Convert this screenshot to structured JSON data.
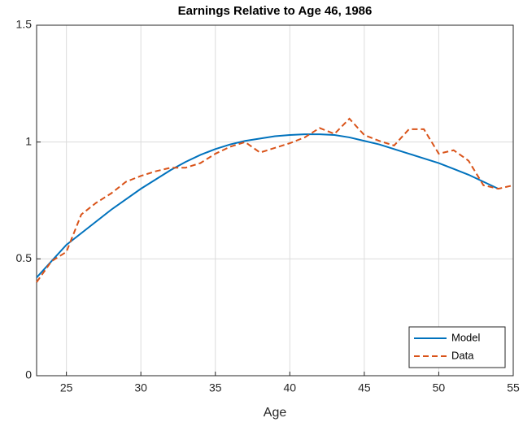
{
  "chart_data": {
    "type": "line",
    "title": "Earnings Relative to Age 46, 1986",
    "x_label": "Age",
    "x": [
      23,
      24,
      25,
      26,
      27,
      28,
      29,
      30,
      31,
      32,
      33,
      34,
      35,
      36,
      37,
      38,
      39,
      40,
      41,
      42,
      43,
      44,
      45,
      46,
      47,
      48,
      49,
      50,
      51,
      52,
      53,
      54,
      55
    ],
    "series": [
      {
        "name": "Model",
        "color": "#0072BD",
        "style": "solid",
        "values": [
          0.42,
          0.49,
          0.56,
          0.61,
          0.66,
          0.71,
          0.755,
          0.8,
          0.84,
          0.88,
          0.915,
          0.945,
          0.97,
          0.99,
          1.005,
          1.015,
          1.025,
          1.03,
          1.033,
          1.033,
          1.03,
          1.02,
          1.005,
          0.99,
          0.97,
          0.95,
          0.93,
          0.91,
          0.885,
          0.86,
          0.83,
          0.8,
          null
        ]
      },
      {
        "name": "Data",
        "color": "#D95319",
        "style": "dashed",
        "values": [
          0.4,
          0.49,
          0.53,
          0.69,
          0.74,
          0.78,
          0.83,
          0.855,
          0.875,
          0.89,
          0.89,
          0.91,
          0.95,
          0.98,
          1.0,
          0.955,
          0.975,
          0.995,
          1.02,
          1.06,
          1.035,
          1.1,
          1.03,
          1.005,
          0.985,
          1.055,
          1.055,
          0.95,
          0.965,
          0.92,
          0.815,
          0.8,
          0.815
        ]
      }
    ],
    "xlim": [
      23,
      55
    ],
    "xticks": [
      25,
      30,
      35,
      40,
      45,
      50,
      55
    ],
    "ylim": [
      0,
      1.5
    ],
    "yticks": [
      0,
      0.5,
      1,
      1.5
    ],
    "grid": true,
    "legend": "lower right"
  }
}
